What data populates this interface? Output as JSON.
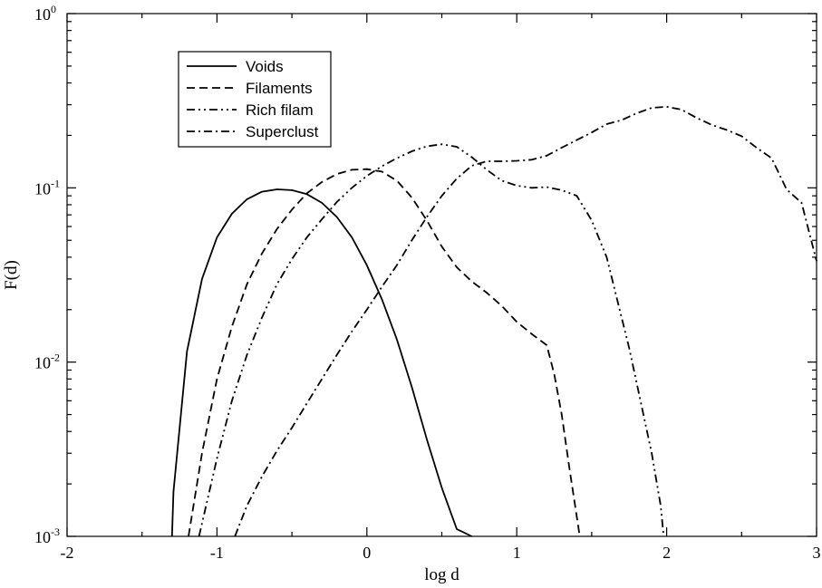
{
  "chart_data": {
    "type": "line",
    "xlabel": "log d",
    "ylabel": "F(d)",
    "xlim": [
      -2,
      3
    ],
    "ylim": [
      0.001,
      1
    ],
    "yscale": "log",
    "grid": false,
    "legend_position": "top-left",
    "x_ticks": [
      {
        "value": -2,
        "label": "-2"
      },
      {
        "value": -1,
        "label": "-1"
      },
      {
        "value": 0,
        "label": "0"
      },
      {
        "value": 1,
        "label": "1"
      },
      {
        "value": 2,
        "label": "2"
      },
      {
        "value": 3,
        "label": "3"
      }
    ],
    "y_ticks": [
      {
        "value": 0.001,
        "base": "10",
        "exp": "-3"
      },
      {
        "value": 0.01,
        "base": "10",
        "exp": "-2"
      },
      {
        "value": 0.1,
        "base": "10",
        "exp": "-1"
      },
      {
        "value": 1,
        "base": "10",
        "exp": "0"
      }
    ],
    "series": [
      {
        "name": "Voids",
        "dash": "solid",
        "points": [
          [
            -1.3,
            0.001
          ],
          [
            -1.29,
            0.0018
          ],
          [
            -1.2,
            0.0115
          ],
          [
            -1.1,
            0.03
          ],
          [
            -1.0,
            0.052
          ],
          [
            -0.9,
            0.071
          ],
          [
            -0.8,
            0.086
          ],
          [
            -0.7,
            0.095
          ],
          [
            -0.6,
            0.098
          ],
          [
            -0.5,
            0.097
          ],
          [
            -0.4,
            0.092
          ],
          [
            -0.3,
            0.082
          ],
          [
            -0.2,
            0.068
          ],
          [
            -0.1,
            0.052
          ],
          [
            0.0,
            0.036
          ],
          [
            0.1,
            0.023
          ],
          [
            0.2,
            0.0135
          ],
          [
            0.3,
            0.0072
          ],
          [
            0.4,
            0.0036
          ],
          [
            0.5,
            0.0019
          ],
          [
            0.6,
            0.0011
          ],
          [
            0.7,
            0.001
          ]
        ]
      },
      {
        "name": "Filaments",
        "dash": "dashed",
        "points": [
          [
            -1.19,
            0.001
          ],
          [
            -1.1,
            0.003
          ],
          [
            -1.0,
            0.008
          ],
          [
            -0.9,
            0.016
          ],
          [
            -0.8,
            0.028
          ],
          [
            -0.7,
            0.042
          ],
          [
            -0.6,
            0.058
          ],
          [
            -0.5,
            0.075
          ],
          [
            -0.4,
            0.093
          ],
          [
            -0.3,
            0.108
          ],
          [
            -0.2,
            0.12
          ],
          [
            -0.1,
            0.127
          ],
          [
            0.0,
            0.128
          ],
          [
            0.1,
            0.124
          ],
          [
            0.2,
            0.11
          ],
          [
            0.3,
            0.088
          ],
          [
            0.4,
            0.065
          ],
          [
            0.5,
            0.046
          ],
          [
            0.6,
            0.035
          ],
          [
            0.7,
            0.029
          ],
          [
            0.8,
            0.025
          ],
          [
            0.9,
            0.021
          ],
          [
            1.0,
            0.017
          ],
          [
            1.1,
            0.0145
          ],
          [
            1.2,
            0.0125
          ],
          [
            1.25,
            0.0085
          ],
          [
            1.3,
            0.005
          ],
          [
            1.35,
            0.0025
          ],
          [
            1.4,
            0.0013
          ],
          [
            1.42,
            0.001
          ]
        ]
      },
      {
        "name": "Rich filam",
        "dash": "dash-dot-dot",
        "points": [
          [
            -1.12,
            0.001
          ],
          [
            -1.0,
            0.0028
          ],
          [
            -0.9,
            0.006
          ],
          [
            -0.8,
            0.011
          ],
          [
            -0.7,
            0.018
          ],
          [
            -0.6,
            0.028
          ],
          [
            -0.5,
            0.039
          ],
          [
            -0.4,
            0.052
          ],
          [
            -0.3,
            0.066
          ],
          [
            -0.2,
            0.083
          ],
          [
            -0.1,
            0.1
          ],
          [
            0.0,
            0.117
          ],
          [
            0.1,
            0.133
          ],
          [
            0.2,
            0.148
          ],
          [
            0.3,
            0.162
          ],
          [
            0.4,
            0.173
          ],
          [
            0.5,
            0.178
          ],
          [
            0.6,
            0.172
          ],
          [
            0.7,
            0.15
          ],
          [
            0.8,
            0.127
          ],
          [
            0.9,
            0.11
          ],
          [
            1.0,
            0.103
          ],
          [
            1.1,
            0.1
          ],
          [
            1.2,
            0.101
          ],
          [
            1.3,
            0.097
          ],
          [
            1.4,
            0.09
          ],
          [
            1.5,
            0.065
          ],
          [
            1.6,
            0.04
          ],
          [
            1.75,
            0.012
          ],
          [
            1.9,
            0.003
          ],
          [
            1.96,
            0.0015
          ],
          [
            1.98,
            0.001
          ]
        ]
      },
      {
        "name": "Superclust",
        "dash": "dash-dot",
        "points": [
          [
            -0.88,
            0.001
          ],
          [
            -0.8,
            0.0015
          ],
          [
            -0.7,
            0.0022
          ],
          [
            -0.6,
            0.0031
          ],
          [
            -0.5,
            0.0042
          ],
          [
            -0.4,
            0.0058
          ],
          [
            -0.3,
            0.008
          ],
          [
            -0.2,
            0.011
          ],
          [
            -0.1,
            0.015
          ],
          [
            0.0,
            0.02
          ],
          [
            0.1,
            0.027
          ],
          [
            0.2,
            0.036
          ],
          [
            0.3,
            0.05
          ],
          [
            0.4,
            0.068
          ],
          [
            0.5,
            0.09
          ],
          [
            0.6,
            0.113
          ],
          [
            0.7,
            0.134
          ],
          [
            0.8,
            0.142
          ],
          [
            0.9,
            0.142
          ],
          [
            1.0,
            0.143
          ],
          [
            1.1,
            0.145
          ],
          [
            1.2,
            0.153
          ],
          [
            1.3,
            0.17
          ],
          [
            1.4,
            0.188
          ],
          [
            1.5,
            0.208
          ],
          [
            1.6,
            0.232
          ],
          [
            1.7,
            0.245
          ],
          [
            1.8,
            0.268
          ],
          [
            1.9,
            0.288
          ],
          [
            2.0,
            0.292
          ],
          [
            2.1,
            0.281
          ],
          [
            2.2,
            0.252
          ],
          [
            2.3,
            0.23
          ],
          [
            2.4,
            0.215
          ],
          [
            2.5,
            0.198
          ],
          [
            2.6,
            0.17
          ],
          [
            2.7,
            0.148
          ],
          [
            2.8,
            0.098
          ],
          [
            2.9,
            0.082
          ],
          [
            3.0,
            0.038
          ]
        ]
      }
    ]
  }
}
